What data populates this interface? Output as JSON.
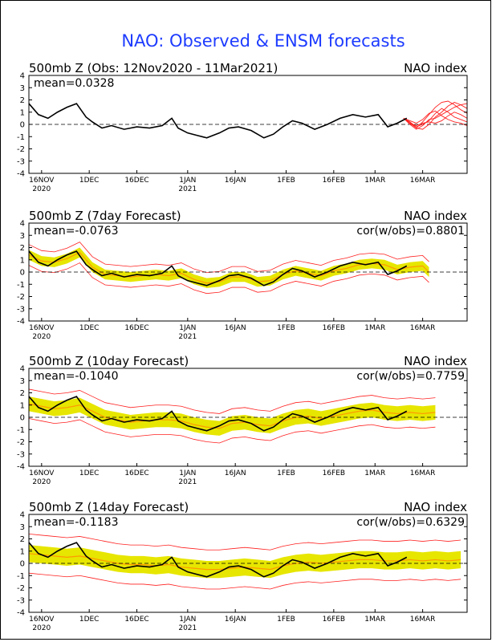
{
  "title": "NAO: Observed & ENSM forecasts",
  "colors": {
    "title": "#1e3cff",
    "observed": "#000000",
    "members": "#ff2020",
    "spread": "#e6e600",
    "ens_mean": "#ff9900",
    "zero_line": "#000000"
  },
  "x_axis": {
    "tick_labels": [
      "16NOV",
      "1DEC",
      "16DEC",
      "1JAN",
      "16JAN",
      "1FEB",
      "16FEB",
      "1MAR",
      "16MAR"
    ],
    "tick_days": [
      4,
      19,
      34,
      50,
      65,
      81,
      96,
      109,
      124
    ],
    "year_labels": [
      {
        "text": "2020",
        "day": 4
      },
      {
        "text": "2021",
        "day": 50
      }
    ],
    "range_days": [
      0,
      138
    ],
    "day0": "12NOV2020"
  },
  "y_axis": {
    "ylim": [
      -4,
      4
    ],
    "ticks": [
      "4",
      "3",
      "2",
      "1",
      "0",
      "-1",
      "-2",
      "-3",
      "-4"
    ]
  },
  "observed": {
    "days": [
      0,
      3,
      6,
      9,
      12,
      15,
      18,
      20,
      23,
      26,
      30,
      34,
      38,
      42,
      45,
      47,
      50,
      53,
      56,
      60,
      63,
      66,
      70,
      74,
      77,
      80,
      83,
      86,
      90,
      94,
      98,
      102,
      106,
      110,
      113,
      116,
      119
    ],
    "values": [
      1.7,
      0.8,
      0.5,
      1.0,
      1.4,
      1.7,
      0.6,
      0.2,
      -0.3,
      -0.1,
      -0.4,
      -0.2,
      -0.3,
      -0.1,
      0.5,
      -0.3,
      -0.7,
      -0.9,
      -1.1,
      -0.7,
      -0.3,
      -0.2,
      -0.5,
      -1.1,
      -0.8,
      -0.2,
      0.3,
      0.1,
      -0.4,
      0.0,
      0.5,
      0.8,
      0.6,
      0.8,
      -0.2,
      0.1,
      0.5
    ]
  },
  "panels": [
    {
      "id": "observed",
      "left_label": "500mb  Z  (Obs: 12Nov2020 - 11Mar2021)",
      "right_label": "NAO index",
      "mean_label": "mean=0.0328",
      "cor_label": "",
      "forecast": null,
      "members": {
        "days": [
          118,
          120,
          122,
          124,
          126,
          128,
          130,
          132,
          134,
          136,
          138
        ],
        "series": [
          [
            0.5,
            0.1,
            -0.3,
            0.2,
            0.8,
            1.4,
            1.8,
            1.9,
            1.6,
            1.2,
            0.9
          ],
          [
            0.5,
            0.2,
            -0.2,
            0.0,
            0.3,
            0.9,
            1.3,
            1.0,
            0.6,
            0.4,
            0.2
          ],
          [
            0.5,
            0.0,
            -0.4,
            -0.1,
            0.4,
            0.5,
            0.8,
            1.1,
            1.4,
            1.6,
            1.7
          ],
          [
            0.5,
            0.3,
            0.1,
            0.4,
            0.9,
            1.1,
            0.7,
            0.4,
            0.2,
            0.1,
            -0.1
          ],
          [
            0.5,
            0.1,
            -0.1,
            0.1,
            0.2,
            0.1,
            0.3,
            0.7,
            1.0,
            0.8,
            0.5
          ],
          [
            0.5,
            0.2,
            -0.3,
            -0.4,
            0.0,
            0.6,
            1.0,
            1.5,
            1.8,
            1.6,
            1.3
          ]
        ]
      }
    },
    {
      "id": "day7",
      "left_label": "500mb  Z  (7day Forecast)",
      "right_label": "NAO index",
      "mean_label": "mean=-0.0763",
      "cor_label": "cor(w/obs)=0.8801",
      "forecast": {
        "days": [
          0,
          4,
          8,
          12,
          16,
          20,
          24,
          28,
          32,
          36,
          40,
          44,
          48,
          52,
          56,
          60,
          64,
          68,
          72,
          76,
          80,
          84,
          88,
          92,
          96,
          100,
          104,
          108,
          112,
          116,
          120,
          124,
          126
        ],
        "mean": [
          1.4,
          0.9,
          0.8,
          1.1,
          1.6,
          0.4,
          -0.2,
          -0.3,
          -0.4,
          -0.3,
          -0.2,
          -0.3,
          -0.1,
          -0.6,
          -0.9,
          -0.8,
          -0.4,
          -0.4,
          -0.8,
          -0.7,
          -0.2,
          0.1,
          -0.1,
          -0.3,
          0.1,
          0.3,
          0.6,
          0.7,
          0.6,
          0.2,
          0.4,
          0.5,
          0.0
        ],
        "spread": 0.4,
        "envelope": 0.85
      },
      "members": null
    },
    {
      "id": "day10",
      "left_label": "500mb  Z  (10day Forecast)",
      "right_label": "NAO index",
      "mean_label": "mean=-0.1040",
      "cor_label": "cor(w/obs)=0.7759",
      "forecast": {
        "days": [
          0,
          4,
          8,
          12,
          16,
          20,
          24,
          28,
          32,
          36,
          40,
          44,
          48,
          52,
          56,
          60,
          64,
          68,
          72,
          76,
          80,
          84,
          88,
          92,
          96,
          100,
          104,
          108,
          112,
          116,
          120,
          124,
          128
        ],
        "mean": [
          1.1,
          0.9,
          0.7,
          0.8,
          1.0,
          0.5,
          0.0,
          -0.2,
          -0.4,
          -0.3,
          -0.2,
          -0.2,
          -0.3,
          -0.6,
          -0.8,
          -0.9,
          -0.5,
          -0.4,
          -0.6,
          -0.7,
          -0.3,
          0.0,
          0.1,
          -0.1,
          0.1,
          0.3,
          0.5,
          0.6,
          0.4,
          0.3,
          0.4,
          0.3,
          0.4
        ],
        "spread": 0.6,
        "envelope": 1.2
      },
      "members": null
    },
    {
      "id": "day14",
      "left_label": "500mb  Z  (14day Forecast)",
      "right_label": "NAO index",
      "mean_label": "mean=-0.1183",
      "cor_label": "cor(w/obs)=0.6329",
      "forecast": {
        "days": [
          0,
          4,
          8,
          12,
          16,
          20,
          24,
          28,
          32,
          36,
          40,
          44,
          48,
          52,
          56,
          60,
          64,
          68,
          72,
          76,
          80,
          84,
          88,
          92,
          96,
          100,
          104,
          108,
          112,
          116,
          120,
          124,
          128,
          132,
          136
        ],
        "mean": [
          0.8,
          0.7,
          0.6,
          0.5,
          0.6,
          0.4,
          0.2,
          0.0,
          -0.1,
          -0.1,
          -0.2,
          -0.1,
          -0.3,
          -0.4,
          -0.5,
          -0.5,
          -0.4,
          -0.3,
          -0.4,
          -0.5,
          -0.2,
          0.0,
          0.1,
          0.0,
          0.1,
          0.2,
          0.3,
          0.3,
          0.2,
          0.2,
          0.3,
          0.2,
          0.3,
          0.2,
          0.3
        ],
        "spread": 0.7,
        "envelope": 1.6
      },
      "members": null
    }
  ]
}
